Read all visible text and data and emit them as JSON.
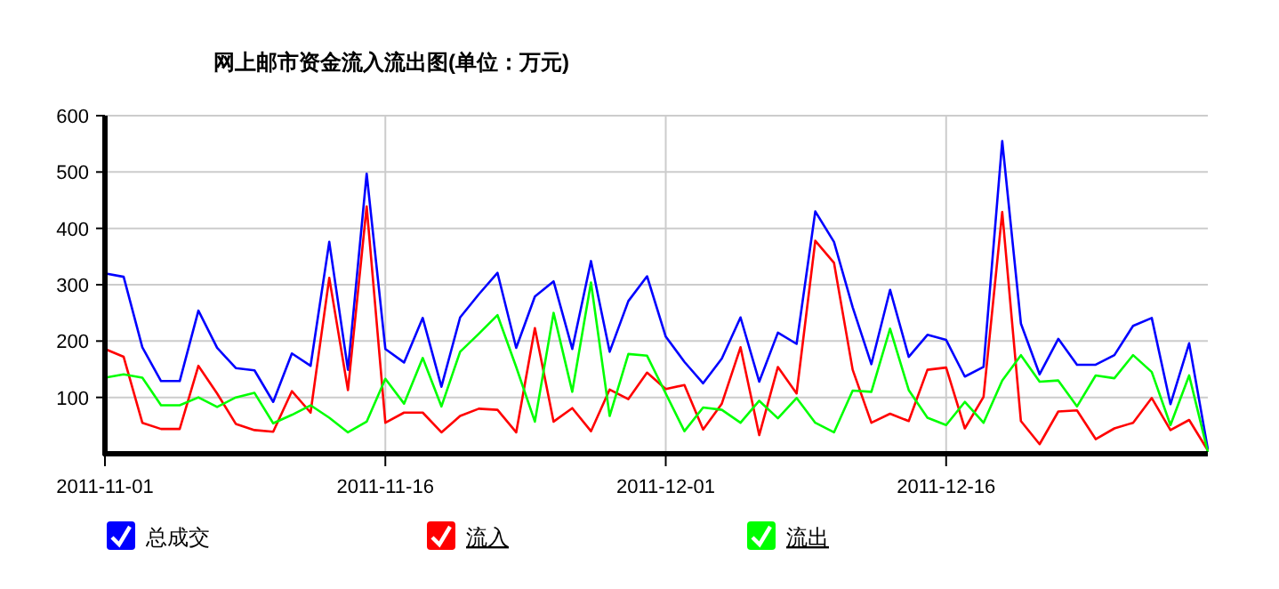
{
  "chart_data": {
    "type": "line",
    "title": "网上邮市资金流入流出图(单位：万元)",
    "x": [
      "2011-11-01",
      "2011-11-02",
      "2011-11-03",
      "2011-11-04",
      "2011-11-05",
      "2011-11-06",
      "2011-11-07",
      "2011-11-08",
      "2011-11-09",
      "2011-11-10",
      "2011-11-11",
      "2011-11-12",
      "2011-11-13",
      "2011-11-14",
      "2011-11-15",
      "2011-11-16",
      "2011-11-17",
      "2011-11-18",
      "2011-11-19",
      "2011-11-20",
      "2011-11-21",
      "2011-11-22",
      "2011-11-23",
      "2011-11-24",
      "2011-11-25",
      "2011-11-26",
      "2011-11-27",
      "2011-11-28",
      "2011-11-29",
      "2011-11-30",
      "2011-12-01",
      "2011-12-02",
      "2011-12-03",
      "2011-12-04",
      "2011-12-05",
      "2011-12-06",
      "2011-12-07",
      "2011-12-08",
      "2011-12-09",
      "2011-12-10",
      "2011-12-11",
      "2011-12-12",
      "2011-12-13",
      "2011-12-14",
      "2011-12-15",
      "2011-12-16",
      "2011-12-17",
      "2011-12-18",
      "2011-12-19",
      "2011-12-20",
      "2011-12-21",
      "2011-12-22",
      "2011-12-23",
      "2011-12-24",
      "2011-12-25",
      "2011-12-26",
      "2011-12-27",
      "2011-12-28",
      "2011-12-29",
      "2011-12-30"
    ],
    "series": [
      {
        "name": "总成交",
        "color": "#0000ff",
        "values": [
          320,
          314,
          189,
          129,
          129,
          254,
          188,
          152,
          148,
          92,
          178,
          156,
          376,
          149,
          497,
          186,
          162,
          241,
          119,
          242,
          283,
          321,
          188,
          279,
          306,
          186,
          342,
          181,
          271,
          315,
          208,
          163,
          125,
          169,
          242,
          128,
          215,
          195,
          430,
          376,
          260,
          159,
          291,
          172,
          211,
          202,
          137,
          154,
          555,
          231,
          141,
          204,
          158,
          158,
          175,
          227,
          241,
          88,
          196,
          8
        ]
      },
      {
        "name": "流入",
        "color": "#ff0000",
        "values": [
          186,
          172,
          55,
          44,
          44,
          156,
          107,
          53,
          42,
          39,
          111,
          73,
          312,
          113,
          439,
          55,
          73,
          73,
          38,
          67,
          80,
          78,
          38,
          223,
          57,
          81,
          40,
          114,
          97,
          144,
          115,
          122,
          43,
          89,
          189,
          33,
          154,
          107,
          378,
          339,
          149,
          55,
          71,
          58,
          149,
          153,
          45,
          101,
          429,
          58,
          17,
          75,
          77,
          26,
          45,
          55,
          99,
          42,
          60,
          6
        ]
      },
      {
        "name": "流出",
        "color": "#00ff00",
        "values": [
          135,
          141,
          135,
          86,
          86,
          100,
          83,
          100,
          108,
          54,
          69,
          86,
          64,
          38,
          57,
          133,
          89,
          170,
          84,
          181,
          213,
          246,
          154,
          57,
          250,
          110,
          304,
          67,
          177,
          174,
          107,
          40,
          82,
          78,
          55,
          94,
          63,
          99,
          55,
          38,
          112,
          110,
          222,
          113,
          64,
          51,
          92,
          55,
          130,
          175,
          128,
          130,
          84,
          139,
          134,
          175,
          145,
          51,
          139,
          3
        ]
      }
    ],
    "xlim": [
      "2011-11-01",
      "2011-12-30"
    ],
    "ylim": [
      0,
      600
    ],
    "xticks": [
      "2011-11-01",
      "2011-11-16",
      "2011-12-01",
      "2011-12-16"
    ],
    "yticks": [
      100,
      200,
      300,
      400,
      500,
      600
    ],
    "grid": true,
    "legend": "bottom"
  }
}
